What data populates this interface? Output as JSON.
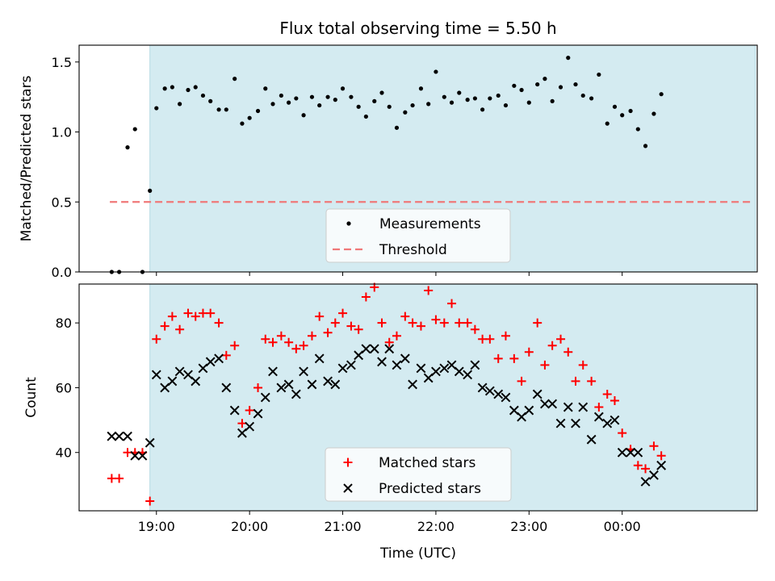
{
  "chart_data": {
    "type": "scatter",
    "title": "Flux total observing time = 5.50 h",
    "xlabel": "Time (UTC)",
    "x_tick_labels": [
      "19:00",
      "20:00",
      "21:00",
      "22:00",
      "23:00",
      "00:00"
    ],
    "x_ticks_hours": [
      19,
      20,
      21,
      22,
      23,
      24
    ],
    "x_range_hours": [
      18.17,
      25.45
    ],
    "shaded_window_hours": [
      18.93,
      25.43
    ],
    "colors": {
      "shade": "#d4ebf1",
      "measurements": "#000000",
      "threshold": "#f07878",
      "matched": "#ff0000",
      "predicted": "#000000"
    },
    "panels": [
      {
        "ylabel": "Matched/Predicted stars",
        "ylim": [
          0,
          1.62
        ],
        "yticks": [
          0.0,
          0.5,
          1.0,
          1.5
        ],
        "ytick_labels": [
          "0.0",
          "0.5",
          "1.0",
          "1.5"
        ],
        "legend": [
          "Measurements",
          "Threshold"
        ],
        "threshold": {
          "name": "Threshold",
          "value": 0.5,
          "x_start": 18.5,
          "x_end": 25.4
        },
        "series": [
          {
            "name": "Measurements",
            "marker": "dot",
            "x": [
              18.52,
              18.6,
              18.69,
              18.77,
              18.85,
              18.93,
              19.0,
              19.09,
              19.17,
              19.25,
              19.34,
              19.42,
              19.5,
              19.58,
              19.67,
              19.75,
              19.84,
              19.92,
              20.0,
              20.09,
              20.17,
              20.25,
              20.34,
              20.42,
              20.5,
              20.58,
              20.67,
              20.75,
              20.84,
              20.92,
              21.0,
              21.09,
              21.17,
              21.25,
              21.34,
              21.42,
              21.5,
              21.58,
              21.67,
              21.75,
              21.84,
              21.92,
              22.0,
              22.09,
              22.17,
              22.25,
              22.34,
              22.42,
              22.5,
              22.58,
              22.67,
              22.75,
              22.84,
              22.92,
              23.0,
              23.09,
              23.17,
              23.25,
              23.34,
              23.42,
              23.5,
              23.58,
              23.67,
              23.75,
              23.84,
              23.92,
              24.0,
              24.09,
              24.17,
              24.25,
              24.34,
              24.42
            ],
            "y": [
              0.0,
              0.0,
              0.89,
              1.02,
              0.0,
              0.58,
              1.17,
              1.31,
              1.32,
              1.2,
              1.3,
              1.32,
              1.26,
              1.22,
              1.16,
              1.16,
              1.38,
              1.06,
              1.1,
              1.15,
              1.31,
              1.2,
              1.26,
              1.21,
              1.24,
              1.12,
              1.25,
              1.19,
              1.25,
              1.23,
              1.31,
              1.25,
              1.18,
              1.11,
              1.22,
              1.28,
              1.18,
              1.03,
              1.14,
              1.19,
              1.31,
              1.2,
              1.43,
              1.25,
              1.21,
              1.28,
              1.23,
              1.24,
              1.16,
              1.24,
              1.26,
              1.19,
              1.33,
              1.3,
              1.21,
              1.34,
              1.38,
              1.22,
              1.32,
              1.53,
              1.34,
              1.26,
              1.24,
              1.41,
              1.06,
              1.18,
              1.12,
              1.15,
              1.02,
              0.9,
              1.13,
              1.27
            ]
          }
        ]
      },
      {
        "ylabel": "Count",
        "ylim": [
          22,
          92
        ],
        "yticks": [
          40,
          60,
          80
        ],
        "ytick_labels": [
          "40",
          "60",
          "80"
        ],
        "legend": [
          "Matched stars",
          "Predicted stars"
        ],
        "series": [
          {
            "name": "Matched stars",
            "marker": "plus",
            "x": [
              18.52,
              18.6,
              18.69,
              18.77,
              18.85,
              18.93,
              19.0,
              19.09,
              19.17,
              19.25,
              19.34,
              19.42,
              19.5,
              19.58,
              19.67,
              19.75,
              19.84,
              19.92,
              20.0,
              20.09,
              20.17,
              20.25,
              20.34,
              20.42,
              20.5,
              20.58,
              20.67,
              20.75,
              20.84,
              20.92,
              21.0,
              21.09,
              21.17,
              21.25,
              21.34,
              21.42,
              21.5,
              21.58,
              21.67,
              21.75,
              21.84,
              21.92,
              22.0,
              22.09,
              22.17,
              22.25,
              22.34,
              22.42,
              22.5,
              22.58,
              22.67,
              22.75,
              22.84,
              22.92,
              23.0,
              23.09,
              23.17,
              23.25,
              23.34,
              23.42,
              23.5,
              23.58,
              23.67,
              23.75,
              23.84,
              23.92,
              24.0,
              24.09,
              24.17,
              24.25,
              24.34,
              24.42
            ],
            "y": [
              32,
              32,
              40,
              40,
              40,
              25,
              75,
              79,
              82,
              78,
              83,
              82,
              83,
              83,
              80,
              70,
              73,
              49,
              53,
              60,
              75,
              74,
              76,
              74,
              72,
              73,
              76,
              82,
              77,
              80,
              83,
              79,
              78,
              88,
              91,
              80,
              74,
              76,
              82,
              80,
              79,
              90,
              81,
              80,
              86,
              80,
              80,
              78,
              75,
              75,
              69,
              76,
              69,
              62,
              71,
              80,
              67,
              73,
              75,
              71,
              62,
              67,
              62,
              54,
              58,
              56,
              46,
              41,
              36,
              35,
              42,
              39
            ]
          },
          {
            "name": "Predicted stars",
            "marker": "x",
            "x": [
              18.52,
              18.6,
              18.69,
              18.77,
              18.85,
              18.93,
              19.0,
              19.09,
              19.17,
              19.25,
              19.34,
              19.42,
              19.5,
              19.58,
              19.67,
              19.75,
              19.84,
              19.92,
              20.0,
              20.09,
              20.17,
              20.25,
              20.34,
              20.42,
              20.5,
              20.58,
              20.67,
              20.75,
              20.84,
              20.92,
              21.0,
              21.09,
              21.17,
              21.25,
              21.34,
              21.42,
              21.5,
              21.58,
              21.67,
              21.75,
              21.84,
              21.92,
              22.0,
              22.09,
              22.17,
              22.25,
              22.34,
              22.42,
              22.5,
              22.58,
              22.67,
              22.75,
              22.84,
              22.92,
              23.0,
              23.09,
              23.17,
              23.25,
              23.34,
              23.42,
              23.5,
              23.58,
              23.67,
              23.75,
              23.84,
              23.92,
              24.0,
              24.09,
              24.17,
              24.25,
              24.34,
              24.42
            ],
            "y": [
              45,
              45,
              45,
              39,
              39,
              43,
              64,
              60,
              62,
              65,
              64,
              62,
              66,
              68,
              69,
              60,
              53,
              46,
              48,
              52,
              57,
              65,
              60,
              61,
              58,
              65,
              61,
              69,
              62,
              61,
              66,
              67,
              70,
              72,
              72,
              68,
              72,
              67,
              69,
              61,
              66,
              63,
              65,
              66,
              67,
              65,
              64,
              67,
              60,
              59,
              58,
              57,
              53,
              51,
              53,
              58,
              55,
              55,
              49,
              54,
              49,
              54,
              44,
              51,
              49,
              50,
              40,
              40,
              40,
              31,
              33,
              36
            ]
          }
        ]
      }
    ]
  }
}
